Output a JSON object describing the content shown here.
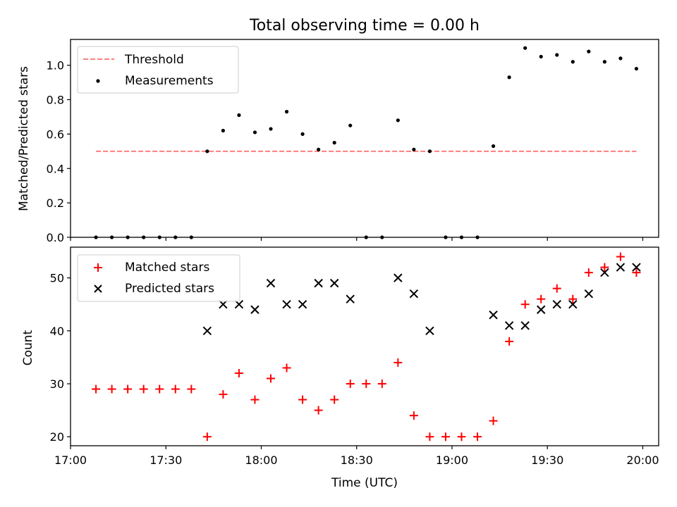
{
  "chart_data": [
    {
      "type": "scatter",
      "title": "Total observing time = 0.00 h",
      "ylabel": "Matched/Predicted stars",
      "xlabel": "",
      "x_axis": "time",
      "xlim": [
        "17:00",
        "20:05"
      ],
      "ylim": [
        0,
        1.15
      ],
      "yticks": [
        0.0,
        0.2,
        0.4,
        0.6,
        0.8,
        1.0
      ],
      "ytick_labels": [
        "0.0",
        "0.2",
        "0.4",
        "0.6",
        "0.8",
        "1.0"
      ],
      "legend": {
        "placement": "top-left",
        "entries": [
          "Threshold",
          "Measurements"
        ]
      },
      "threshold": {
        "name": "Threshold",
        "value": 0.5,
        "x_range": [
          "17:08",
          "19:58"
        ],
        "color": "#ff7f7f"
      },
      "series": [
        {
          "name": "Measurements",
          "marker": "dot",
          "color": "#000000",
          "x": [
            "17:08",
            "17:13",
            "17:18",
            "17:23",
            "17:28",
            "17:33",
            "17:38",
            "17:43",
            "17:48",
            "17:53",
            "17:58",
            "18:03",
            "18:08",
            "18:13",
            "18:18",
            "18:23",
            "18:28",
            "18:33",
            "18:38",
            "18:43",
            "18:48",
            "18:53",
            "18:58",
            "19:03",
            "19:08",
            "19:13",
            "19:18",
            "19:23",
            "19:28",
            "19:33",
            "19:38",
            "19:43",
            "19:48",
            "19:53",
            "19:58"
          ],
          "y": [
            0,
            0,
            0,
            0,
            0,
            0,
            0,
            0.5,
            0.62,
            0.71,
            0.61,
            0.63,
            0.73,
            0.6,
            0.51,
            0.55,
            0.65,
            0,
            0,
            0.68,
            0.51,
            0.5,
            0,
            0,
            0,
            0.53,
            0.93,
            1.1,
            1.05,
            1.06,
            1.02,
            1.08,
            1.02,
            1.04,
            0.98
          ]
        }
      ]
    },
    {
      "type": "scatter",
      "title": "",
      "ylabel": "Count",
      "xlabel": "Time (UTC)",
      "x_axis": "time",
      "xlim": [
        "17:00",
        "20:05"
      ],
      "xticks": [
        "17:00",
        "17:30",
        "18:00",
        "18:30",
        "19:00",
        "19:30",
        "20:00"
      ],
      "ylim": [
        18.3,
        55.8
      ],
      "yticks": [
        20,
        30,
        40,
        50
      ],
      "ytick_labels": [
        "20",
        "30",
        "40",
        "50"
      ],
      "legend": {
        "placement": "top-left",
        "entries": [
          "Matched stars",
          "Predicted stars"
        ]
      },
      "series": [
        {
          "name": "Matched stars",
          "marker": "plus",
          "color": "#ff0000",
          "x": [
            "17:08",
            "17:13",
            "17:18",
            "17:23",
            "17:28",
            "17:33",
            "17:38",
            "17:43",
            "17:48",
            "17:53",
            "17:58",
            "18:03",
            "18:08",
            "18:13",
            "18:18",
            "18:23",
            "18:28",
            "18:33",
            "18:38",
            "18:43",
            "18:48",
            "18:53",
            "18:58",
            "19:03",
            "19:08",
            "19:13",
            "19:18",
            "19:23",
            "19:28",
            "19:33",
            "19:38",
            "19:43",
            "19:48",
            "19:53",
            "19:58"
          ],
          "y": [
            29,
            29,
            29,
            29,
            29,
            29,
            29,
            20,
            28,
            32,
            27,
            31,
            33,
            27,
            25,
            27,
            30,
            30,
            30,
            34,
            24,
            20,
            20,
            20,
            20,
            23,
            38,
            45,
            46,
            48,
            46,
            51,
            52,
            54,
            51
          ]
        },
        {
          "name": "Predicted stars",
          "marker": "x",
          "color": "#000000",
          "x": [
            "17:43",
            "17:48",
            "17:53",
            "17:58",
            "18:03",
            "18:08",
            "18:13",
            "18:18",
            "18:23",
            "18:28",
            "18:43",
            "18:48",
            "18:53",
            "19:13",
            "19:18",
            "19:23",
            "19:28",
            "19:33",
            "19:38",
            "19:43",
            "19:48",
            "19:53",
            "19:58"
          ],
          "y": [
            40,
            45,
            45,
            44,
            49,
            45,
            45,
            49,
            49,
            46,
            50,
            47,
            40,
            43,
            41,
            41,
            44,
            45,
            45,
            47,
            51,
            52,
            52
          ]
        }
      ]
    }
  ]
}
